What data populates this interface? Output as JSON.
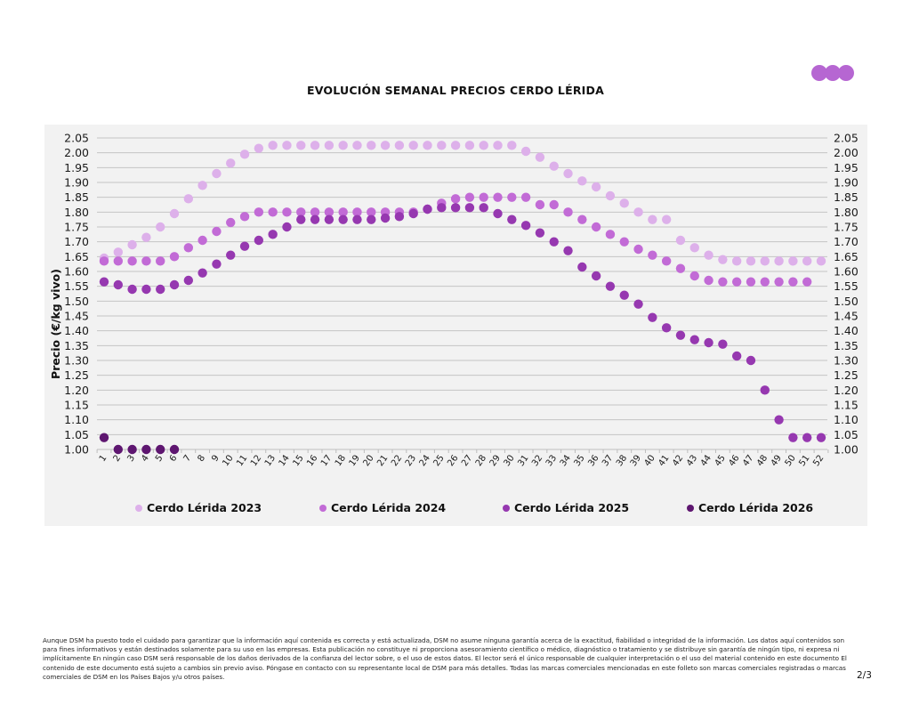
{
  "header": {
    "title": "EVOLUCIÓN SEMANAL PRECIOS CERDO LÉRIDA",
    "logo_icon": "three-dots-logo-icon",
    "logo_color": "#b666d2"
  },
  "chart_data": {
    "type": "scatter",
    "title": "EVOLUCIÓN SEMANAL PRECIOS CERDO LÉRIDA",
    "xlabel": "",
    "ylabel": "Precio (€/kg vivo)",
    "ylim": [
      1.0,
      2.05
    ],
    "yticks": [
      "1.00",
      "1.05",
      "1.10",
      "1.15",
      "1.20",
      "1.25",
      "1.30",
      "1.35",
      "1.40",
      "1.45",
      "1.50",
      "1.55",
      "1.60",
      "1.65",
      "1.70",
      "1.75",
      "1.80",
      "1.85",
      "1.90",
      "1.95",
      "2.00",
      "2.05"
    ],
    "secondary_yaxis": true,
    "grid": true,
    "x": [
      1,
      2,
      3,
      4,
      5,
      6,
      7,
      8,
      9,
      10,
      11,
      12,
      13,
      14,
      15,
      16,
      17,
      18,
      19,
      20,
      21,
      22,
      23,
      24,
      25,
      26,
      27,
      28,
      29,
      30,
      31,
      32,
      33,
      34,
      35,
      36,
      37,
      38,
      39,
      40,
      41,
      42,
      43,
      44,
      45,
      46,
      47,
      48,
      49,
      50,
      51,
      52
    ],
    "xtick_labels": [
      "1",
      "2",
      "3",
      "4",
      "5",
      "6",
      "7",
      "8",
      "9",
      "10",
      "11",
      "12",
      "13",
      "14",
      "15",
      "16",
      "17",
      "18",
      "19",
      "20",
      "21",
      "22",
      "23",
      "24",
      "25",
      "26",
      "27",
      "28",
      "29",
      "30",
      "31",
      "32",
      "33",
      "34",
      "35",
      "36",
      "37",
      "38",
      "39",
      "40",
      "41",
      "42",
      "43",
      "44",
      "45",
      "46",
      "47",
      "48",
      "49",
      "50",
      "51",
      "52"
    ],
    "legend_position": "bottom",
    "series": [
      {
        "name": "Cerdo Lérida 2023",
        "color": "#ddb0ea",
        "values": [
          1.645,
          1.665,
          1.69,
          1.715,
          1.75,
          1.795,
          1.845,
          1.89,
          1.93,
          1.965,
          1.995,
          2.015,
          2.025,
          2.025,
          2.025,
          2.025,
          2.025,
          2.025,
          2.025,
          2.025,
          2.025,
          2.025,
          2.025,
          2.025,
          2.025,
          2.025,
          2.025,
          2.025,
          2.025,
          2.025,
          2.005,
          1.985,
          1.955,
          1.93,
          1.905,
          1.885,
          1.855,
          1.83,
          1.8,
          1.775,
          1.775,
          1.705,
          1.68,
          1.655,
          1.64,
          1.635,
          1.635,
          1.635,
          1.635,
          1.635,
          1.635,
          1.635
        ]
      },
      {
        "name": "Cerdo Lérida 2024",
        "color": "#c26bd6",
        "values": [
          1.635,
          1.635,
          1.635,
          1.635,
          1.635,
          1.65,
          1.68,
          1.705,
          1.735,
          1.765,
          1.785,
          1.8,
          1.8,
          1.8,
          1.8,
          1.8,
          1.8,
          1.8,
          1.8,
          1.8,
          1.8,
          1.8,
          1.8,
          1.81,
          1.83,
          1.845,
          1.85,
          1.85,
          1.85,
          1.85,
          1.85,
          1.825,
          1.825,
          1.8,
          1.775,
          1.75,
          1.725,
          1.7,
          1.675,
          1.655,
          1.635,
          1.61,
          1.585,
          1.57,
          1.565,
          1.565,
          1.565,
          1.565,
          1.565,
          1.565,
          1.565,
          null
        ]
      },
      {
        "name": "Cerdo Lérida 2025",
        "color": "#9638b0",
        "values": [
          1.565,
          1.555,
          1.54,
          1.54,
          1.54,
          1.555,
          1.57,
          1.595,
          1.625,
          1.655,
          1.685,
          1.705,
          1.725,
          1.75,
          1.775,
          1.775,
          1.775,
          1.775,
          1.775,
          1.775,
          1.78,
          1.785,
          1.795,
          1.81,
          1.815,
          1.815,
          1.815,
          1.815,
          1.795,
          1.775,
          1.755,
          1.73,
          1.7,
          1.67,
          1.615,
          1.585,
          1.55,
          1.52,
          1.49,
          1.445,
          1.41,
          1.385,
          1.37,
          1.36,
          1.355,
          1.315,
          1.3,
          1.2,
          1.1,
          1.04,
          1.04,
          1.04
        ]
      },
      {
        "name": "Cerdo Lérida 2026",
        "color": "#5e1670",
        "values": [
          1.04,
          1.0,
          1.0,
          1.0,
          1.0,
          1.0,
          null,
          null,
          null,
          null,
          null,
          null,
          null,
          null,
          null,
          null,
          null,
          null,
          null,
          null,
          null,
          null,
          null,
          null,
          null,
          null,
          null,
          null,
          null,
          null,
          null,
          null,
          null,
          null,
          null,
          null,
          null,
          null,
          null,
          null,
          null,
          null,
          null,
          null,
          null,
          null,
          null,
          null,
          null,
          null,
          null,
          null
        ]
      }
    ]
  },
  "footer": {
    "disclaimer": "Aunque DSM ha puesto todo el cuidado para garantizar que la información aquí contenida es correcta y está actualizada, DSM no asume ninguna garantía acerca de la exactitud, fiabilidad o integridad de la información. Los datos aquí contenidos son para fines informativos y están destinados solamente para su uso en las empresas. Esta publicación no constituye ni proporciona asesoramiento científico o médico, diagnóstico o tratamiento y se distribuye sin garantía de ningún tipo, ni expresa ni implícitamente En ningún caso DSM será responsable de los daños derivados de la confianza del lector sobre, o el uso de estos datos. El lector será el único responsable de cualquier interpretación o el uso del material contenido en este documento El contenido de este documento está sujeto a cambios sin previo aviso. Póngase en contacto con su representante local de DSM para más detalles. Todas las marcas comerciales mencionadas en este folleto son marcas comerciales registradas o marcas comerciales de DSM en los Países Bajos y/u otros países.",
    "page_number": "2/3"
  }
}
